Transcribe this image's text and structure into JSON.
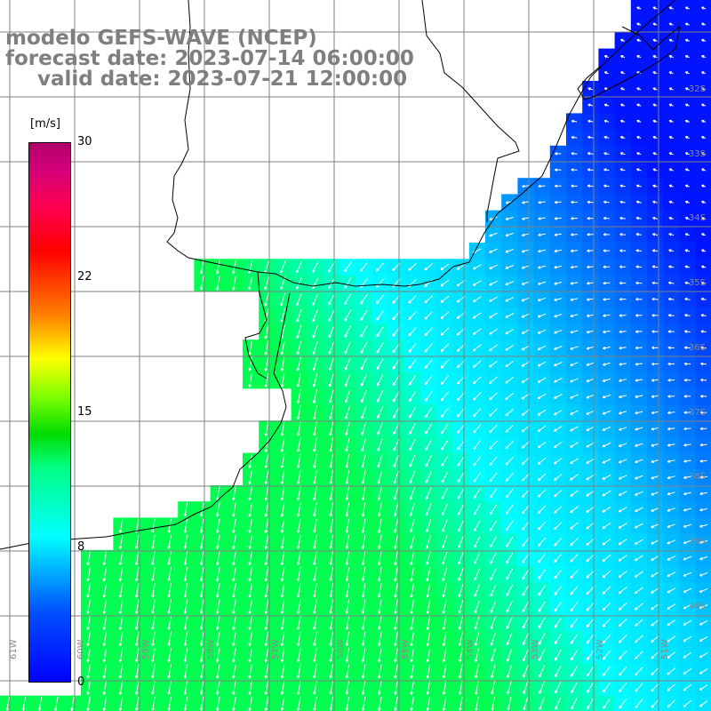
{
  "title": {
    "model": "modelo GEFS-WAVE (NCEP)",
    "forecast": "forecast date: 2023-07-14 06:00:00",
    "valid": "valid date: 2023-07-21 12:00:00"
  },
  "colorbar": {
    "unit": "[m/s]",
    "ticks": [
      "30",
      "22",
      "15",
      "8",
      "0"
    ],
    "colors": [
      "#0000ff",
      "#00b4ff",
      "#00ffff",
      "#00dd00",
      "#ffff00",
      "#ff0000",
      "#b2006a"
    ]
  },
  "lat_labels": [
    "32S",
    "33S",
    "34S",
    "35S",
    "36S",
    "37S",
    "38S",
    "39S",
    "40S"
  ],
  "lon_labels": [
    "61W",
    "60W",
    "59W",
    "58W",
    "57W",
    "56W",
    "55W",
    "54W",
    "53W",
    "52W",
    "51W"
  ],
  "colors": {
    "land": "#ffffff",
    "grid": "#808080",
    "coast": "#000000",
    "arrows": "#ffffff",
    "title": "#7f7f7f"
  }
}
